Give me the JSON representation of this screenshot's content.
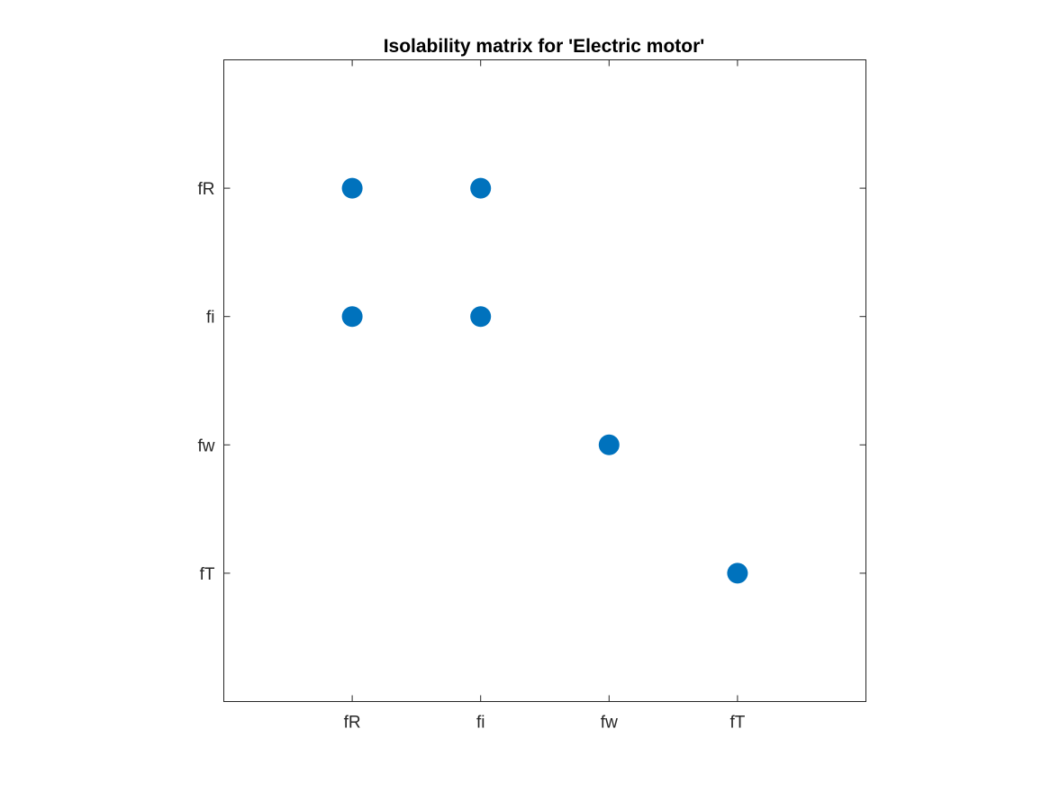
{
  "chart_data": {
    "type": "scatter",
    "title": "Isolability matrix for 'Electric motor'",
    "xlabel": "",
    "ylabel": "",
    "x_categories": [
      "fR",
      "fi",
      "fw",
      "fT"
    ],
    "y_categories": [
      "fR",
      "fi",
      "fw",
      "fT"
    ],
    "xlim": [
      0,
      5
    ],
    "ylim": [
      0,
      5
    ],
    "points": [
      {
        "x": "fR",
        "y": "fR"
      },
      {
        "x": "fi",
        "y": "fR"
      },
      {
        "x": "fR",
        "y": "fi"
      },
      {
        "x": "fi",
        "y": "fi"
      },
      {
        "x": "fw",
        "y": "fw"
      },
      {
        "x": "fT",
        "y": "fT"
      }
    ],
    "marker_color": "#0072BD",
    "grid": false,
    "legend": "none"
  }
}
